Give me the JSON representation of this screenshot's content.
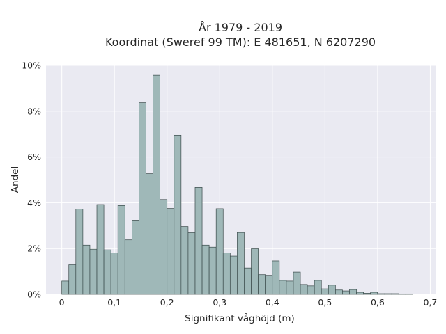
{
  "chart_data": {
    "type": "bar",
    "title": "År 1979 - 2019",
    "subtitle": "Koordinat (Sweref 99 TM): E 481651, N 6207290",
    "xlabel": "Signifikant våghöjd (m)",
    "ylabel": "Andel",
    "xlim": [
      -0.03,
      0.71
    ],
    "ylim": [
      0,
      10
    ],
    "xticks": [
      0,
      0.1,
      0.2,
      0.3,
      0.4,
      0.5,
      0.6,
      0.7
    ],
    "xtick_labels": [
      "0",
      "0,1",
      "0,2",
      "0,3",
      "0,4",
      "0,5",
      "0,6",
      "0,7"
    ],
    "yticks": [
      0,
      2,
      4,
      6,
      8,
      10
    ],
    "ytick_labels": [
      "0%",
      "2%",
      "4%",
      "6%",
      "8%",
      "10%"
    ],
    "bin_width": 0.01333,
    "bin_start": 0,
    "values": [
      0.58,
      1.29,
      3.72,
      2.15,
      1.97,
      3.92,
      1.94,
      1.81,
      3.88,
      2.38,
      3.24,
      8.37,
      5.27,
      9.57,
      4.14,
      3.75,
      6.95,
      2.96,
      2.69,
      4.67,
      2.15,
      2.06,
      3.74,
      1.81,
      1.67,
      2.7,
      1.15,
      1.99,
      0.86,
      0.83,
      1.46,
      0.61,
      0.58,
      0.97,
      0.43,
      0.37,
      0.61,
      0.24,
      0.4,
      0.19,
      0.15,
      0.21,
      0.09,
      0.05,
      0.09,
      0.03,
      0.03,
      0.03,
      0.02,
      0.02
    ],
    "grid": true,
    "colors": {
      "bar_fill": "#9fb8b8",
      "bar_edge": "#3a4a4a",
      "plot_bg": "#eaeaf2",
      "grid": "#ffffff"
    }
  }
}
